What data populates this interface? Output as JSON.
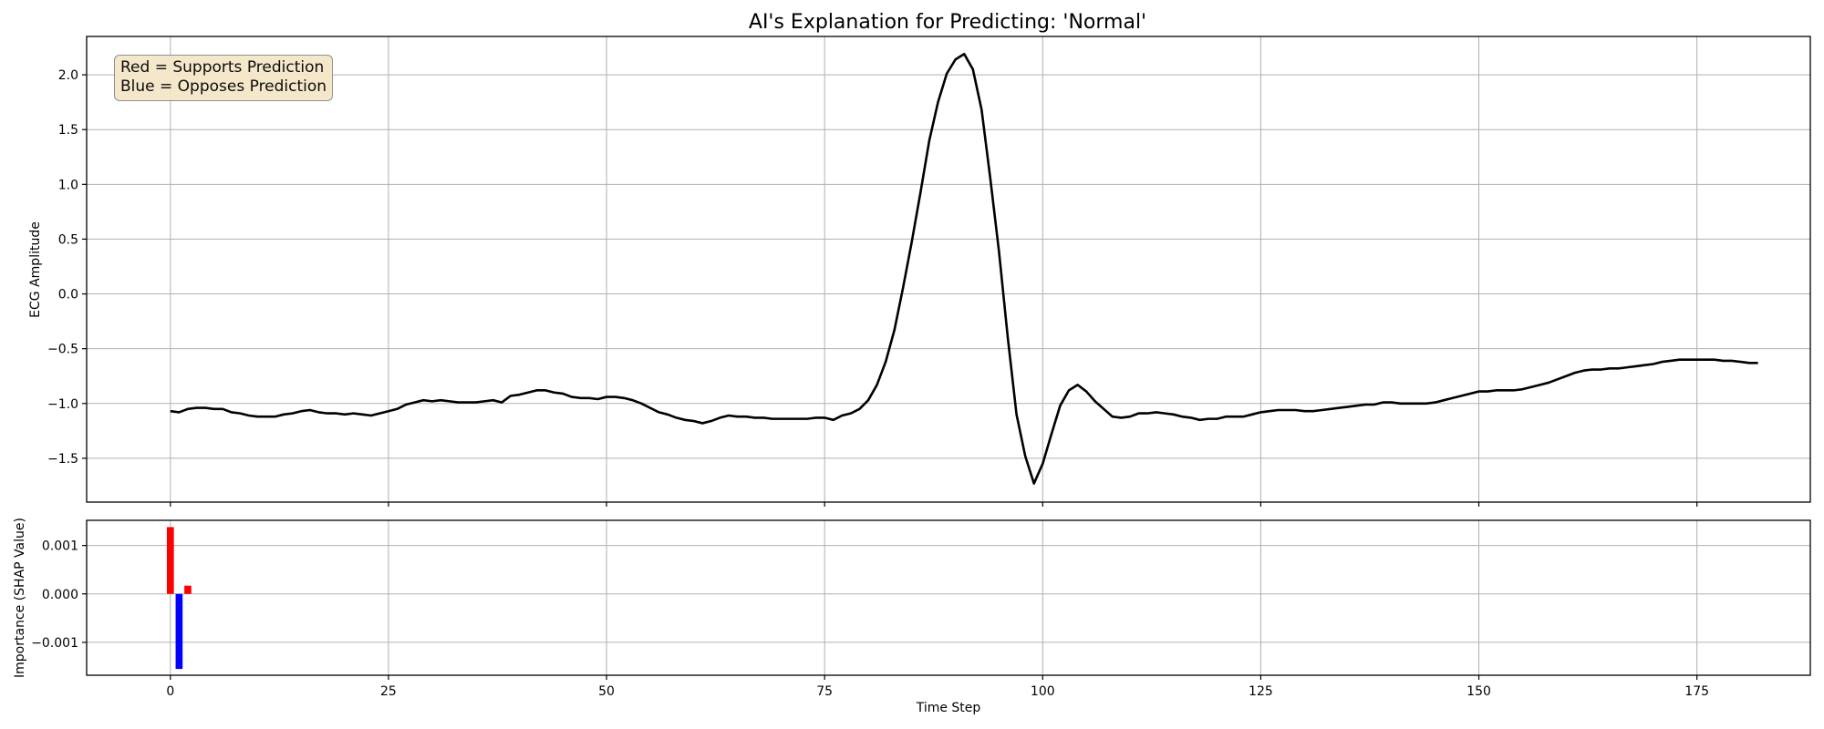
{
  "chart_data": {
    "type": "line",
    "title": "AI's Explanation for Predicting: 'Normal'",
    "legend_note": {
      "lines": [
        "Red = Supports Prediction",
        "Blue = Opposes Prediction"
      ],
      "placement": "top-left"
    },
    "colors": {
      "signal": "#000000",
      "supports": "#ff0000",
      "opposes": "#0000ff",
      "grid": "#b0b0b0"
    },
    "top_panel": {
      "ylabel": "ECG Amplitude",
      "xlim": [
        -9.6,
        188
      ],
      "ylim": [
        -1.9,
        2.35
      ],
      "xticks": [
        0,
        25,
        50,
        75,
        100,
        125,
        150,
        175
      ],
      "yticks": [
        -1.5,
        -1.0,
        -0.5,
        0.0,
        0.5,
        1.0,
        1.5,
        2.0
      ],
      "ytick_labels": [
        "−1.5",
        "−1.0",
        "−0.5",
        "0.0",
        "0.5",
        "1.0",
        "1.5",
        "2.0"
      ],
      "grid": true,
      "series": {
        "x_start": 0,
        "y": [
          -1.07,
          -1.08,
          -1.05,
          -1.04,
          -1.04,
          -1.05,
          -1.05,
          -1.08,
          -1.09,
          -1.11,
          -1.12,
          -1.12,
          -1.12,
          -1.1,
          -1.09,
          -1.07,
          -1.06,
          -1.08,
          -1.09,
          -1.09,
          -1.1,
          -1.09,
          -1.1,
          -1.11,
          -1.09,
          -1.07,
          -1.05,
          -1.01,
          -0.99,
          -0.97,
          -0.98,
          -0.97,
          -0.98,
          -0.99,
          -0.99,
          -0.99,
          -0.98,
          -0.97,
          -0.99,
          -0.93,
          -0.92,
          -0.9,
          -0.88,
          -0.88,
          -0.9,
          -0.91,
          -0.94,
          -0.95,
          -0.95,
          -0.96,
          -0.94,
          -0.94,
          -0.95,
          -0.97,
          -1.0,
          -1.04,
          -1.08,
          -1.1,
          -1.13,
          -1.15,
          -1.16,
          -1.18,
          -1.16,
          -1.13,
          -1.11,
          -1.12,
          -1.12,
          -1.13,
          -1.13,
          -1.14,
          -1.14,
          -1.14,
          -1.14,
          -1.14,
          -1.13,
          -1.13,
          -1.15,
          -1.11,
          -1.09,
          -1.05,
          -0.97,
          -0.83,
          -0.62,
          -0.33,
          0.06,
          0.48,
          0.93,
          1.4,
          1.75,
          2.01,
          2.14,
          2.19,
          2.05,
          1.68,
          1.05,
          0.38,
          -0.4,
          -1.1,
          -1.48,
          -1.73,
          -1.55,
          -1.28,
          -1.02,
          -0.88,
          -0.83,
          -0.89,
          -0.98,
          -1.05,
          -1.12,
          -1.13,
          -1.12,
          -1.09,
          -1.09,
          -1.08,
          -1.09,
          -1.1,
          -1.12,
          -1.13,
          -1.15,
          -1.14,
          -1.14,
          -1.12,
          -1.12,
          -1.12,
          -1.1,
          -1.08,
          -1.07,
          -1.06,
          -1.06,
          -1.06,
          -1.07,
          -1.07,
          -1.06,
          -1.05,
          -1.04,
          -1.03,
          -1.02,
          -1.01,
          -1.01,
          -0.99,
          -0.99,
          -1.0,
          -1.0,
          -1.0,
          -1.0,
          -0.99,
          -0.97,
          -0.95,
          -0.93,
          -0.91,
          -0.89,
          -0.89,
          -0.88,
          -0.88,
          -0.88,
          -0.87,
          -0.85,
          -0.83,
          -0.81,
          -0.78,
          -0.75,
          -0.72,
          -0.7,
          -0.69,
          -0.69,
          -0.68,
          -0.68,
          -0.67,
          -0.66,
          -0.65,
          -0.64,
          -0.62,
          -0.61,
          -0.6,
          -0.6,
          -0.6,
          -0.6,
          -0.6,
          -0.61,
          -0.61,
          -0.62,
          -0.63,
          -0.63
        ]
      }
    },
    "bottom_panel": {
      "type": "bar",
      "xlabel": "Time Step",
      "ylabel": "Importance (SHAP Value)",
      "xlim": [
        -9.6,
        188
      ],
      "ylim": [
        -0.00168,
        0.00152
      ],
      "xticks": [
        0,
        25,
        50,
        75,
        100,
        125,
        150,
        175
      ],
      "yticks": [
        -0.001,
        0.0,
        0.001
      ],
      "ytick_labels": [
        "−0.001",
        "0.000",
        "0.001"
      ],
      "grid": true,
      "bars": [
        {
          "x": 0,
          "value": 0.00138
        },
        {
          "x": 1,
          "value": -0.00155
        },
        {
          "x": 2,
          "value": 0.00017
        }
      ]
    }
  }
}
